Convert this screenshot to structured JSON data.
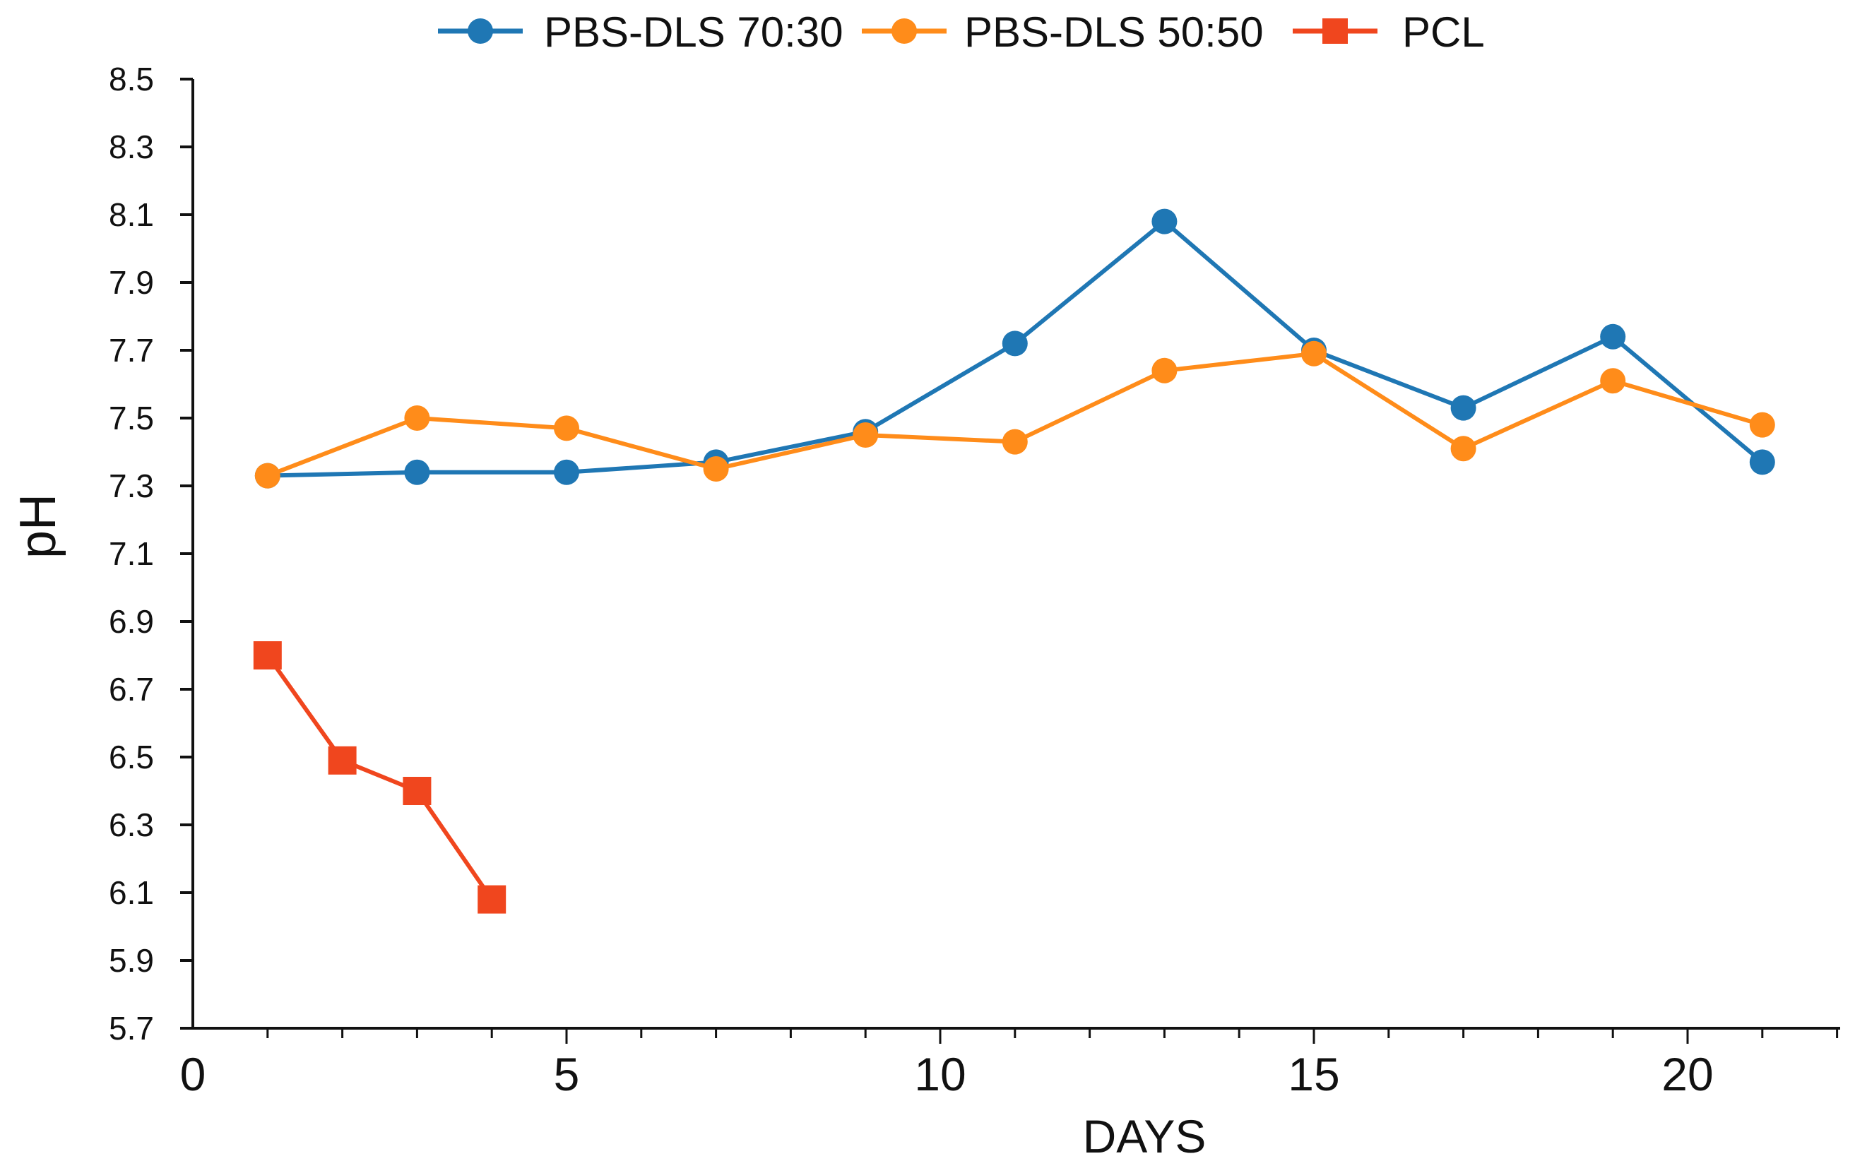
{
  "colors": {
    "axis": "#111111",
    "text": "#111111"
  },
  "chart_data": {
    "type": "line",
    "title": "",
    "xlabel": "DAYS",
    "ylabel": "pH",
    "xlim": [
      0,
      22
    ],
    "ylim": [
      5.7,
      8.5
    ],
    "xticks": [
      0,
      5,
      10,
      15,
      20
    ],
    "yticks": [
      5.7,
      5.9,
      6.1,
      6.3,
      6.5,
      6.7,
      6.9,
      7.1,
      7.3,
      7.5,
      7.7,
      7.9,
      8.1,
      8.3,
      8.5
    ],
    "ytick_labels": [
      "5.7",
      "5.9",
      "6.1",
      "6.3",
      "6.5",
      "6.7",
      "6.9",
      "7.1",
      "7.3",
      "7.5",
      "7.7",
      "7.9",
      "8.1",
      "8.3",
      "8.5"
    ],
    "grid": false,
    "legend_position": "top",
    "series": [
      {
        "name": "PBS-DLS 70:30",
        "color": "#1f77b4",
        "marker": "circle",
        "x": [
          1,
          3,
          5,
          7,
          9,
          11,
          13,
          15,
          17,
          19,
          21
        ],
        "y": [
          7.33,
          7.34,
          7.34,
          7.37,
          7.46,
          7.72,
          8.08,
          7.7,
          7.53,
          7.74,
          7.37
        ]
      },
      {
        "name": "PBS-DLS 50:50",
        "color": "#ff8c1a",
        "marker": "circle",
        "x": [
          1,
          3,
          5,
          7,
          9,
          11,
          13,
          15,
          17,
          19,
          21
        ],
        "y": [
          7.33,
          7.5,
          7.47,
          7.35,
          7.45,
          7.43,
          7.64,
          7.69,
          7.41,
          7.61,
          7.48
        ]
      },
      {
        "name": "PCL",
        "color": "#f0461e",
        "marker": "square",
        "x": [
          1,
          2,
          3,
          4
        ],
        "y": [
          6.8,
          6.49,
          6.4,
          6.08
        ]
      }
    ]
  }
}
